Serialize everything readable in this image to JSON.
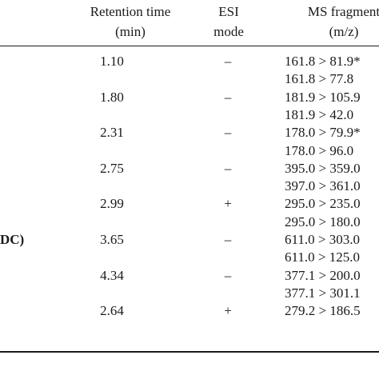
{
  "header": {
    "retention_time_line1": "Retention time",
    "retention_time_line2": "(min)",
    "esi_line1": "ESI",
    "esi_line2": "mode",
    "ms_line1": "MS fragment",
    "ms_line2": "(m/z)"
  },
  "rows": [
    {
      "name": "",
      "rt": "1.10",
      "esi": "–",
      "ms": [
        "161.8 > 81.9*",
        "161.8 > 77.8"
      ]
    },
    {
      "name": "",
      "rt": "1.80",
      "esi": "–",
      "ms": [
        "181.9 > 105.9",
        "181.9 > 42.0"
      ]
    },
    {
      "name": "",
      "rt": "2.31",
      "esi": "–",
      "ms": [
        "178.0 > 79.9*",
        "178.0 > 96.0"
      ]
    },
    {
      "name": "",
      "rt": "2.75",
      "esi": "–",
      "ms": [
        "395.0 > 359.0",
        "397.0 > 361.0"
      ]
    },
    {
      "name": "",
      "rt": "2.99",
      "esi": "+",
      "ms": [
        "295.0 > 235.0",
        "295.0 > 180.0"
      ]
    },
    {
      "name": "DC)",
      "rt": "3.65",
      "esi": "–",
      "ms": [
        "611.0 > 303.0",
        "611.0 > 125.0"
      ]
    },
    {
      "name": "",
      "rt": "4.34",
      "esi": "–",
      "ms": [
        "377.1 > 200.0",
        "377.1 > 301.1"
      ]
    },
    {
      "name": "",
      "rt": "2.64",
      "esi": "+",
      "ms": [
        "279.2 > 186.5"
      ]
    }
  ]
}
